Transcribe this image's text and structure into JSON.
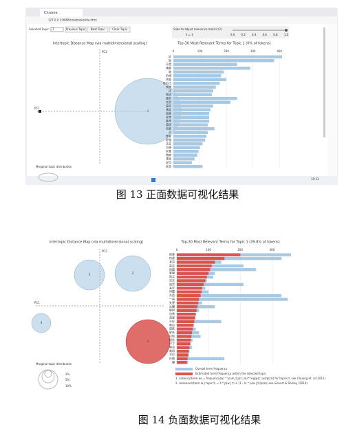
{
  "figures": [
    {
      "caption": "图 13 正面数据可视化结果",
      "browser": {
        "tab": "Chrome",
        "address": "127.0.0.1:8888/notebooks/lda.html"
      },
      "controls": {
        "selected_topic": "Selected Topic:",
        "topic_value": "1",
        "buttons": [
          "Previous Topic",
          "Next Topic",
          "Clear Topic"
        ],
        "slider_label": "Slide to adjust relevance metric:(2)",
        "lambda": "λ = 1",
        "slider_ticks": [
          "0.0",
          "0.2",
          "0.4",
          "0.6",
          "0.8",
          "1.0"
        ]
      },
      "map": {
        "title": "Intertopic Distance Map (via multidimensional scaling)",
        "pc1": "PC1",
        "pc2": "PC2",
        "topics": [
          "1"
        ],
        "marginal": "Marginal topic distribution"
      },
      "bars": {
        "title": "Top-30 Most Relevant Terms for Topic 1 (0% of tokens)",
        "xlim": [
          0,
          410
        ],
        "xticks": [
          0,
          100,
          200,
          300,
          400
        ],
        "terms": [
          "好",
          "很",
          "不错",
          "满意",
          "就",
          "价格",
          "质量",
          "性价比",
          "快递",
          "还",
          "物流",
          "服务",
          "东西",
          "喜欢",
          "速度",
          "效果",
          "非常",
          "推荐",
          "值得",
          "包装",
          "买",
          "便宜",
          "舒服",
          "正品",
          "方便",
          "实惠",
          "购物",
          "漂亮",
          "好用",
          "发货"
        ],
        "overall": [
          410,
          380,
          240,
          290,
          190,
          180,
          200,
          175,
          160,
          150,
          145,
          240,
          215,
          150,
          140,
          135,
          135,
          135,
          130,
          155,
          130,
          125,
          120,
          110,
          100,
          95,
          90,
          80,
          70,
          110
        ]
      },
      "taskbar": {
        "time": "19:21"
      }
    },
    {
      "caption": "图 14 负面数据可视化结果",
      "map": {
        "title": "Intertopic Distance Map (via multidimensional scaling)",
        "pc1": "PC1",
        "pc2": "PC2",
        "topics": [
          "3",
          "2",
          "4",
          "1"
        ],
        "marginal": "Marginal topic distribution",
        "sizes": [
          "2%",
          "5%",
          "10%"
        ]
      },
      "bars": {
        "title": "Top-30 Most Relevant Terms for Topic 1 (39.8% of tokens)",
        "xlim": [
          0,
          360
        ],
        "xticks": [
          0,
          100,
          200,
          300
        ],
        "terms": [
          "很差",
          "快递",
          "发货",
          "商品",
          "质量",
          "客服",
          "购买",
          "京东",
          "退货",
          "差评",
          "问题",
          "东西",
          "一般",
          "失望",
          "太慢",
          "破损",
          "包装",
          "态度",
          "不好",
          "售后",
          "退款",
          "联系",
          "垃圾",
          "假货",
          "坏了",
          "换货",
          "难用",
          "不行",
          "价格",
          "慢"
        ],
        "overall": [
          360,
          330,
          140,
          210,
          250,
          120,
          115,
          95,
          210,
          90,
          100,
          330,
          350,
          80,
          120,
          70,
          60,
          50,
          140,
          55,
          60,
          70,
          75,
          50,
          45,
          48,
          40,
          38,
          150,
          36
        ],
        "estimated": [
          200,
          150,
          120,
          110,
          105,
          100,
          95,
          90,
          85,
          80,
          78,
          75,
          70,
          68,
          65,
          62,
          60,
          58,
          55,
          52,
          50,
          48,
          46,
          44,
          42,
          40,
          38,
          36,
          34,
          32
        ],
        "legend": [
          "Overall term frequency",
          "Estimated term frequency within the selected topic"
        ],
        "notes": [
          "1. saliency(term w) = frequency(w) * [sum_t p(t | w) * log(p(t | w)/p(t))] for topics t; see Chuang et. al (2012)",
          "2. relevance(term w | topic t) = λ * p(w | t) + (1 - λ) * p(w | t)/p(w); see Sievert & Shirley (2014)"
        ]
      }
    }
  ]
}
